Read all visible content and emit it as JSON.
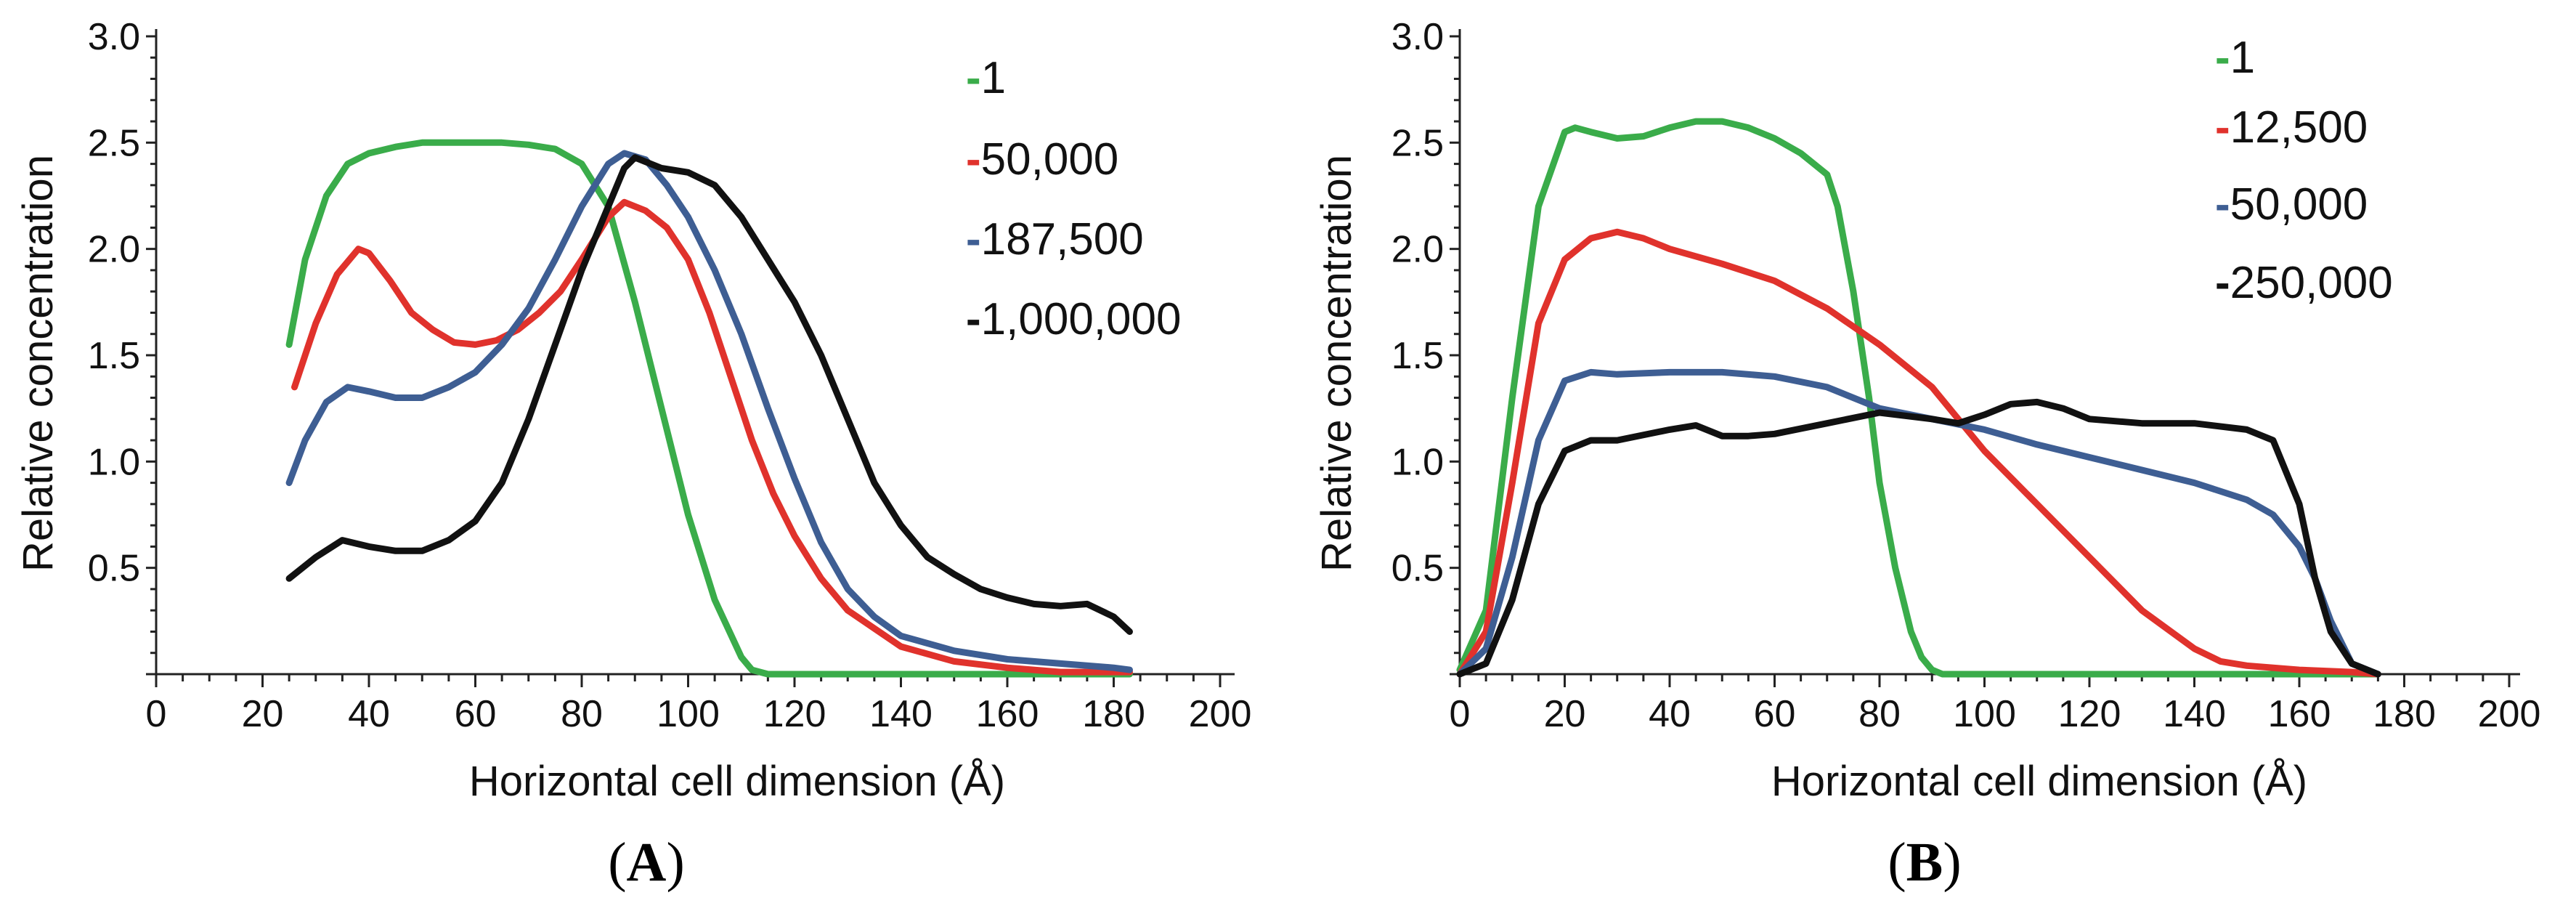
{
  "figure": {
    "panels": [
      {
        "open": "(",
        "letter": "A",
        "close": ")"
      },
      {
        "open": "(",
        "letter": "B",
        "close": ")"
      }
    ]
  },
  "chart_data": [
    {
      "type": "line",
      "panel": "A",
      "title": "",
      "xlabel": "Horizontal cell dimension (Å)",
      "ylabel": "Relative concentration",
      "xlim": [
        0,
        200
      ],
      "ylim": [
        0,
        3.0
      ],
      "x_ticks": [
        0,
        20,
        40,
        60,
        80,
        100,
        120,
        140,
        160,
        180,
        200
      ],
      "y_ticks": [
        0.5,
        1.0,
        1.5,
        2.0,
        2.5,
        3.0
      ],
      "x_tick_labels": [
        "0",
        "20",
        "40",
        "60",
        "80",
        "100",
        "120",
        "140",
        "160",
        "180",
        "200"
      ],
      "y_tick_labels": [
        "0.5",
        "1.0",
        "1.5",
        "2.0",
        "2.5",
        "3.0"
      ],
      "grid": false,
      "legend_position": "top-right",
      "series": [
        {
          "name": "-1",
          "color": "#3aac4a",
          "x": [
            25,
            28,
            32,
            36,
            40,
            45,
            50,
            55,
            60,
            65,
            70,
            75,
            80,
            85,
            90,
            95,
            100,
            105,
            110,
            112,
            115,
            120,
            130,
            140,
            150,
            160,
            170,
            180,
            183
          ],
          "y": [
            1.55,
            1.95,
            2.25,
            2.4,
            2.45,
            2.48,
            2.5,
            2.5,
            2.5,
            2.5,
            2.49,
            2.47,
            2.4,
            2.2,
            1.75,
            1.25,
            0.75,
            0.35,
            0.08,
            0.02,
            0.0,
            0.0,
            0.0,
            0.0,
            0.0,
            0.0,
            0.0,
            0.0,
            0.0
          ]
        },
        {
          "name": "-50,000",
          "color": "#e0322c",
          "x": [
            26,
            30,
            34,
            38,
            40,
            44,
            48,
            52,
            56,
            60,
            64,
            68,
            72,
            76,
            80,
            85,
            88,
            92,
            96,
            100,
            104,
            108,
            112,
            116,
            120,
            125,
            130,
            140,
            150,
            160,
            170,
            180,
            183
          ],
          "y": [
            1.35,
            1.65,
            1.88,
            2.0,
            1.98,
            1.85,
            1.7,
            1.62,
            1.56,
            1.55,
            1.57,
            1.62,
            1.7,
            1.8,
            1.95,
            2.15,
            2.22,
            2.18,
            2.1,
            1.95,
            1.7,
            1.4,
            1.1,
            0.85,
            0.65,
            0.45,
            0.3,
            0.13,
            0.06,
            0.03,
            0.01,
            0.01,
            0.01
          ]
        },
        {
          "name": "-187,500",
          "color": "#3e5e93",
          "x": [
            25,
            28,
            32,
            36,
            40,
            45,
            50,
            55,
            60,
            65,
            70,
            75,
            80,
            85,
            88,
            92,
            96,
            100,
            105,
            110,
            115,
            120,
            125,
            130,
            135,
            140,
            150,
            160,
            170,
            180,
            183
          ],
          "y": [
            0.9,
            1.1,
            1.28,
            1.35,
            1.33,
            1.3,
            1.3,
            1.35,
            1.42,
            1.55,
            1.72,
            1.95,
            2.2,
            2.4,
            2.45,
            2.42,
            2.3,
            2.15,
            1.9,
            1.6,
            1.25,
            0.92,
            0.62,
            0.4,
            0.27,
            0.18,
            0.11,
            0.07,
            0.05,
            0.03,
            0.02
          ]
        },
        {
          "name": "-1,000,000",
          "color": "#111111",
          "x": [
            25,
            30,
            35,
            40,
            45,
            50,
            55,
            60,
            65,
            70,
            75,
            80,
            85,
            88,
            90,
            95,
            100,
            105,
            110,
            115,
            120,
            125,
            130,
            135,
            140,
            145,
            150,
            155,
            160,
            165,
            170,
            175,
            180,
            183
          ],
          "y": [
            0.45,
            0.55,
            0.63,
            0.6,
            0.58,
            0.58,
            0.63,
            0.72,
            0.9,
            1.2,
            1.55,
            1.9,
            2.2,
            2.38,
            2.43,
            2.38,
            2.36,
            2.3,
            2.15,
            1.95,
            1.75,
            1.5,
            1.2,
            0.9,
            0.7,
            0.55,
            0.47,
            0.4,
            0.36,
            0.33,
            0.32,
            0.33,
            0.27,
            0.2
          ]
        }
      ]
    },
    {
      "type": "line",
      "panel": "B",
      "title": "",
      "xlabel": "Horizontal cell dimension (Å)",
      "ylabel": "Relative concentration",
      "xlim": [
        0,
        200
      ],
      "ylim": [
        0,
        3.0
      ],
      "x_ticks": [
        0,
        20,
        40,
        60,
        80,
        100,
        120,
        140,
        160,
        180,
        200
      ],
      "y_ticks": [
        0.5,
        1.0,
        1.5,
        2.0,
        2.5,
        3.0
      ],
      "x_tick_labels": [
        "0",
        "20",
        "40",
        "60",
        "80",
        "100",
        "120",
        "140",
        "160",
        "180",
        "200"
      ],
      "y_tick_labels": [
        "0.5",
        "1.0",
        "1.5",
        "2.0",
        "2.5",
        "3.0"
      ],
      "grid": false,
      "legend_position": "top-right",
      "series": [
        {
          "name": "-1",
          "color": "#3aac4a",
          "x": [
            0,
            5,
            10,
            15,
            20,
            22,
            25,
            30,
            35,
            40,
            45,
            50,
            55,
            60,
            65,
            70,
            72,
            75,
            78,
            80,
            83,
            86,
            88,
            90,
            92,
            95,
            100,
            120,
            140,
            160,
            175
          ],
          "y": [
            0.02,
            0.3,
            1.3,
            2.2,
            2.55,
            2.57,
            2.55,
            2.52,
            2.53,
            2.57,
            2.6,
            2.6,
            2.57,
            2.52,
            2.45,
            2.35,
            2.2,
            1.8,
            1.3,
            0.9,
            0.5,
            0.2,
            0.08,
            0.02,
            0.0,
            0.0,
            0.0,
            0.0,
            0.0,
            0.0,
            0.0
          ]
        },
        {
          "name": "-12,500",
          "color": "#e0322c",
          "x": [
            0,
            5,
            10,
            15,
            20,
            25,
            30,
            35,
            40,
            50,
            60,
            70,
            80,
            90,
            100,
            110,
            120,
            130,
            140,
            145,
            150,
            160,
            170,
            175
          ],
          "y": [
            0.0,
            0.2,
            0.9,
            1.65,
            1.95,
            2.05,
            2.08,
            2.05,
            2.0,
            1.93,
            1.85,
            1.72,
            1.55,
            1.35,
            1.05,
            0.8,
            0.55,
            0.3,
            0.12,
            0.06,
            0.04,
            0.02,
            0.01,
            0.0
          ]
        },
        {
          "name": "-50,000",
          "color": "#3e5e93",
          "x": [
            0,
            5,
            10,
            15,
            20,
            25,
            30,
            40,
            50,
            60,
            70,
            80,
            90,
            100,
            110,
            120,
            130,
            140,
            150,
            155,
            160,
            163,
            166,
            170,
            175
          ],
          "y": [
            0.0,
            0.12,
            0.55,
            1.1,
            1.38,
            1.42,
            1.41,
            1.42,
            1.42,
            1.4,
            1.35,
            1.25,
            1.2,
            1.15,
            1.08,
            1.02,
            0.96,
            0.9,
            0.82,
            0.75,
            0.6,
            0.45,
            0.25,
            0.05,
            0.0
          ]
        },
        {
          "name": "-250,000",
          "color": "#111111",
          "x": [
            0,
            5,
            10,
            15,
            20,
            25,
            30,
            40,
            45,
            50,
            55,
            60,
            70,
            80,
            90,
            95,
            100,
            105,
            110,
            115,
            120,
            130,
            140,
            150,
            155,
            160,
            163,
            166,
            170,
            175
          ],
          "y": [
            0.0,
            0.05,
            0.35,
            0.8,
            1.05,
            1.1,
            1.1,
            1.15,
            1.17,
            1.12,
            1.12,
            1.13,
            1.18,
            1.23,
            1.2,
            1.18,
            1.22,
            1.27,
            1.28,
            1.25,
            1.2,
            1.18,
            1.18,
            1.15,
            1.1,
            0.8,
            0.45,
            0.2,
            0.05,
            0.0
          ]
        }
      ]
    }
  ]
}
